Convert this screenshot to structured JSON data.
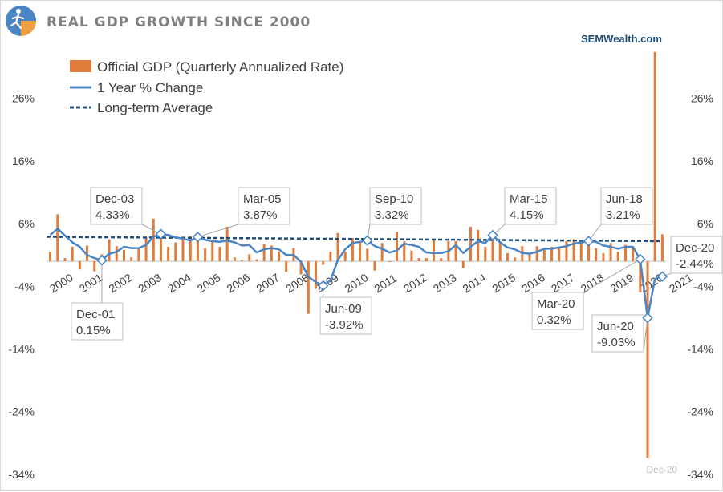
{
  "header": {
    "title": "REAL GDP GROWTH SINCE 2000",
    "brand": "SEMWealth.com",
    "logo_icon": "running-figure-logo-icon"
  },
  "colors": {
    "bars": "#e07b39",
    "line": "#4a86c5",
    "average": "#1f4e79",
    "text": "#404040",
    "title": "#7f7f7f"
  },
  "chart_data": {
    "type": "bar",
    "combo": [
      "bar",
      "line",
      "dashed-line"
    ],
    "title": "REAL GDP GROWTH SINCE 2000",
    "xlabel": "",
    "ylabel": "",
    "ylim": [
      -34,
      36
    ],
    "y_ticks": [
      26,
      16,
      6,
      -4,
      -14,
      -24,
      -34
    ],
    "y_tick_labels": [
      "26%",
      "16%",
      "6%",
      "-4%",
      "-14%",
      "-24%",
      "-34%"
    ],
    "x_tick_labels": [
      "2000",
      "2001",
      "2002",
      "2003",
      "2004",
      "2005",
      "2006",
      "2007",
      "2008",
      "2009",
      "2010",
      "2011",
      "2012",
      "2013",
      "2014",
      "2015",
      "2016",
      "2017",
      "2018",
      "2019",
      "2020",
      "2021"
    ],
    "grid": false,
    "legend_position": "top-left",
    "legend": [
      "Official GDP (Quarterly Annualized Rate)",
      "1 Year % Change",
      "Long-term Average"
    ],
    "quarters_start": "2000-Q1",
    "series": [
      {
        "name": "Official GDP (Quarterly Annualized Rate)",
        "kind": "bar",
        "values": [
          1.5,
          7.5,
          0.5,
          2.3,
          -1.3,
          2.5,
          -1.6,
          1.1,
          3.5,
          2.4,
          1.8,
          0.6,
          2.1,
          3.8,
          6.8,
          4.6,
          2.3,
          3.0,
          3.7,
          4.0,
          4.5,
          2.1,
          3.2,
          2.3,
          5.5,
          0.6,
          0.2,
          1.1,
          0.3,
          2.8,
          2.5,
          1.5,
          -1.7,
          2.1,
          -2.1,
          -8.4,
          -4.4,
          -0.6,
          1.5,
          4.5,
          1.5,
          3.7,
          3.0,
          2.0,
          -1.5,
          2.9,
          -0.1,
          4.7,
          3.2,
          1.7,
          0.5,
          0.5,
          3.6,
          0.5,
          3.2,
          3.2,
          -1.1,
          5.5,
          5.0,
          2.3,
          3.2,
          3.0,
          1.3,
          0.6,
          2.4,
          1.2,
          2.4,
          2.0,
          2.3,
          2.2,
          3.2,
          3.5,
          3.3,
          2.7,
          2.1,
          1.3,
          2.9,
          1.5,
          2.6,
          2.4,
          -5.0,
          -31.4,
          33.4,
          4.3
        ],
        "labels_visible": {
          "Dec-20": ""
        }
      },
      {
        "name": "1 Year % Change",
        "kind": "line",
        "values": [
          4.2,
          5.2,
          4.1,
          3.0,
          2.3,
          1.0,
          0.5,
          0.15,
          1.2,
          1.5,
          2.3,
          2.1,
          2.1,
          2.6,
          3.9,
          4.33,
          4.2,
          3.8,
          3.6,
          3.3,
          3.87,
          3.4,
          3.2,
          3.1,
          3.3,
          3.0,
          2.5,
          2.6,
          1.4,
          1.9,
          2.1,
          1.9,
          1.0,
          1.0,
          -0.1,
          -2.5,
          -3.3,
          -3.92,
          -3.1,
          0.2,
          1.9,
          2.9,
          3.1,
          3.32,
          2.4,
          2.0,
          1.4,
          1.7,
          2.8,
          2.6,
          2.3,
          1.4,
          1.3,
          1.3,
          1.6,
          2.6,
          1.3,
          2.3,
          3.2,
          2.9,
          4.15,
          3.0,
          2.2,
          1.9,
          1.3,
          1.2,
          1.5,
          2.0,
          2.0,
          2.2,
          2.4,
          2.8,
          3.0,
          3.21,
          3.1,
          2.5,
          2.3,
          2.0,
          2.3,
          2.3,
          0.32,
          -9.03,
          -2.8,
          -2.44
        ]
      },
      {
        "name": "Long-term Average",
        "kind": "dashed-line",
        "values_start_end": [
          3.9,
          3.2
        ]
      }
    ],
    "annotations": [
      {
        "date": "Dec-01",
        "value": "0.15%",
        "quarter_index": 7,
        "y": 0.15
      },
      {
        "date": "Dec-03",
        "value": "4.33%",
        "quarter_index": 15,
        "y": 4.33
      },
      {
        "date": "Mar-05",
        "value": "3.87%",
        "quarter_index": 20,
        "y": 3.87
      },
      {
        "date": "Jun-09",
        "value": "-3.92%",
        "quarter_index": 37,
        "y": -3.92
      },
      {
        "date": "Sep-10",
        "value": "3.32%",
        "quarter_index": 43,
        "y": 3.32
      },
      {
        "date": "Mar-15",
        "value": "4.15%",
        "quarter_index": 60,
        "y": 4.15
      },
      {
        "date": "Jun-18",
        "value": "3.21%",
        "quarter_index": 73,
        "y": 3.21
      },
      {
        "date": "Mar-20",
        "value": "0.32%",
        "quarter_index": 80,
        "y": 0.32
      },
      {
        "date": "Jun-20",
        "value": "-9.03%",
        "quarter_index": 81,
        "y": -9.03
      },
      {
        "date": "Dec-20",
        "value": "-2.44%",
        "quarter_index": 83,
        "y": -2.44
      }
    ],
    "bar_annotations": [
      {
        "text": "Dec-20",
        "quarter_index": 83
      }
    ]
  }
}
